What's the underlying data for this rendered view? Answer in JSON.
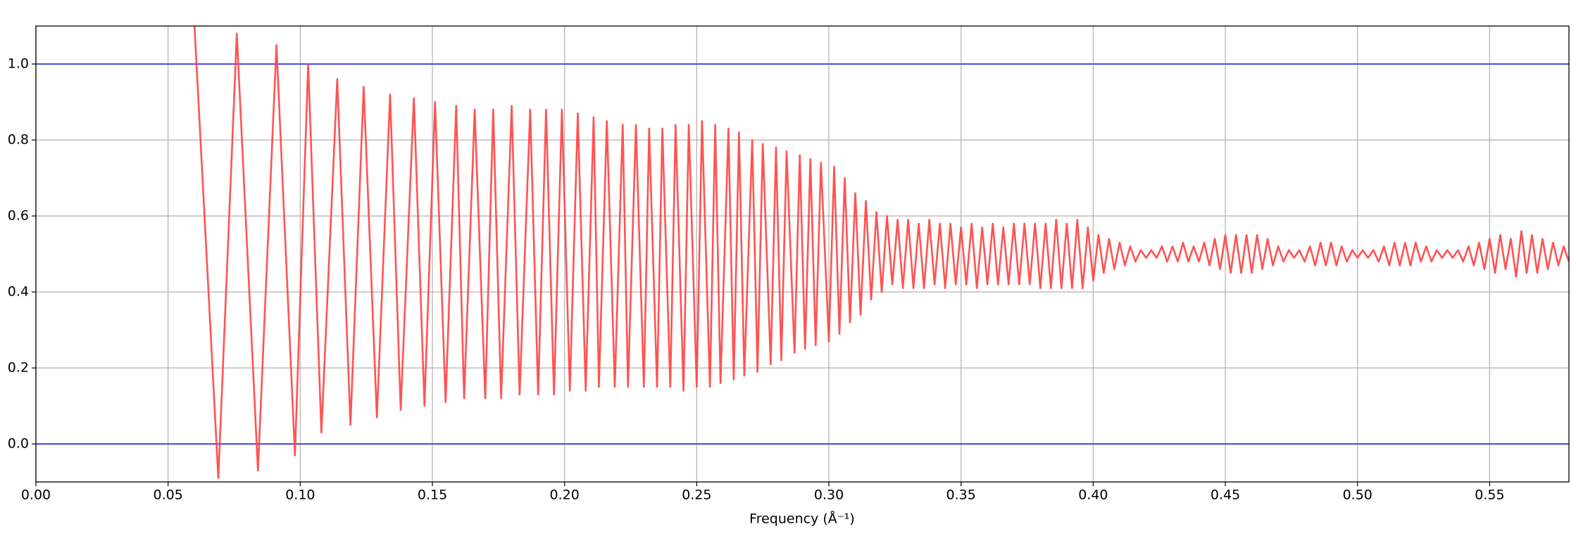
{
  "chart_data": {
    "type": "line",
    "xlabel": "Frequency (Å⁻¹)",
    "xlim": [
      0,
      0.58
    ],
    "ylim": [
      -0.1,
      1.1
    ],
    "xticks": [
      {
        "value": 0,
        "label": "0.00"
      },
      0.05,
      {
        "value": 0.1,
        "label": "0.10"
      },
      0.15,
      {
        "value": 0.2,
        "label": "0.20"
      },
      0.25,
      {
        "value": 0.3,
        "label": "0.30"
      },
      0.35,
      {
        "value": 0.4,
        "label": "0.40"
      },
      0.45,
      {
        "value": 0.5,
        "label": "0.50"
      },
      0.55
    ],
    "yticks": [
      {
        "value": 0,
        "label": "0.0"
      },
      0.2,
      0.4,
      0.6,
      0.8,
      {
        "value": 1,
        "label": "1.0"
      }
    ],
    "grid": true,
    "hlines": [
      0,
      1
    ],
    "hline_color": "#4b4be6",
    "x": [
      0.06,
      0.069,
      0.076,
      0.084,
      0.091,
      0.098,
      0.103,
      0.108,
      0.114,
      0.119,
      0.124,
      0.129,
      0.134,
      0.138,
      0.143,
      0.147,
      0.151,
      0.155,
      0.159,
      0.162,
      0.166,
      0.17,
      0.173,
      0.176,
      0.18,
      0.183,
      0.187,
      0.19,
      0.193,
      0.196,
      0.199,
      0.202,
      0.205,
      0.208,
      0.211,
      0.213,
      0.216,
      0.219,
      0.222,
      0.224,
      0.227,
      0.23,
      0.232,
      0.235,
      0.237,
      0.24,
      0.242,
      0.245,
      0.247,
      0.25,
      0.252,
      0.255,
      0.257,
      0.259,
      0.262,
      0.264,
      0.266,
      0.268,
      0.271,
      0.273,
      0.275,
      0.278,
      0.28,
      0.282,
      0.284,
      0.287,
      0.289,
      0.291,
      0.293,
      0.295,
      0.297,
      0.3,
      0.302,
      0.304,
      0.306,
      0.308,
      0.31,
      0.312,
      0.314,
      0.316,
      0.318,
      0.32,
      0.322,
      0.324,
      0.326,
      0.328,
      0.33,
      0.332,
      0.334,
      0.336,
      0.338,
      0.34,
      0.342,
      0.344,
      0.346,
      0.348,
      0.35,
      0.352,
      0.354,
      0.356,
      0.358,
      0.36,
      0.362,
      0.364,
      0.366,
      0.368,
      0.37,
      0.372,
      0.374,
      0.376,
      0.378,
      0.38,
      0.382,
      0.384,
      0.386,
      0.388,
      0.39,
      0.392,
      0.394,
      0.396,
      0.398,
      0.4,
      0.402,
      0.404,
      0.406,
      0.408,
      0.41,
      0.412,
      0.414,
      0.416,
      0.418,
      0.42,
      0.422,
      0.424,
      0.426,
      0.428,
      0.43,
      0.432,
      0.434,
      0.436,
      0.438,
      0.44,
      0.442,
      0.444,
      0.446,
      0.448,
      0.45,
      0.452,
      0.454,
      0.456,
      0.458,
      0.46,
      0.462,
      0.464,
      0.466,
      0.468,
      0.47,
      0.472,
      0.474,
      0.476,
      0.478,
      0.48,
      0.482,
      0.484,
      0.486,
      0.488,
      0.49,
      0.492,
      0.494,
      0.496,
      0.498,
      0.5,
      0.502,
      0.504,
      0.506,
      0.508,
      0.51,
      0.512,
      0.514,
      0.516,
      0.518,
      0.52,
      0.522,
      0.524,
      0.526,
      0.528,
      0.53,
      0.532,
      0.534,
      0.536,
      0.538,
      0.54,
      0.542,
      0.544,
      0.546,
      0.548,
      0.55,
      0.552,
      0.554,
      0.556,
      0.558,
      0.56,
      0.562,
      0.564,
      0.566,
      0.568,
      0.57,
      0.572,
      0.574,
      0.576,
      0.578,
      0.58
    ],
    "series": [
      {
        "color": "#ff4040",
        "values": [
          1.1,
          -0.09,
          1.08,
          -0.07,
          1.05,
          -0.03,
          1.0,
          0.03,
          0.96,
          0.05,
          0.94,
          0.07,
          0.92,
          0.09,
          0.91,
          0.1,
          0.9,
          0.11,
          0.89,
          0.12,
          0.88,
          0.12,
          0.88,
          0.12,
          0.89,
          0.13,
          0.88,
          0.13,
          0.88,
          0.13,
          0.88,
          0.14,
          0.87,
          0.14,
          0.86,
          0.15,
          0.85,
          0.15,
          0.84,
          0.15,
          0.84,
          0.15,
          0.83,
          0.15,
          0.83,
          0.15,
          0.84,
          0.14,
          0.84,
          0.15,
          0.85,
          0.15,
          0.84,
          0.16,
          0.83,
          0.17,
          0.82,
          0.18,
          0.8,
          0.19,
          0.79,
          0.21,
          0.78,
          0.22,
          0.77,
          0.24,
          0.76,
          0.25,
          0.75,
          0.26,
          0.74,
          0.27,
          0.73,
          0.29,
          0.7,
          0.32,
          0.66,
          0.34,
          0.64,
          0.38,
          0.61,
          0.4,
          0.6,
          0.42,
          0.59,
          0.41,
          0.59,
          0.41,
          0.58,
          0.41,
          0.59,
          0.42,
          0.58,
          0.41,
          0.58,
          0.42,
          0.57,
          0.42,
          0.58,
          0.41,
          0.57,
          0.42,
          0.58,
          0.42,
          0.57,
          0.42,
          0.58,
          0.42,
          0.58,
          0.42,
          0.58,
          0.41,
          0.58,
          0.41,
          0.59,
          0.41,
          0.58,
          0.41,
          0.59,
          0.41,
          0.57,
          0.43,
          0.55,
          0.45,
          0.54,
          0.46,
          0.53,
          0.47,
          0.52,
          0.48,
          0.51,
          0.49,
          0.51,
          0.49,
          0.52,
          0.48,
          0.52,
          0.48,
          0.53,
          0.48,
          0.52,
          0.48,
          0.53,
          0.47,
          0.54,
          0.46,
          0.55,
          0.45,
          0.55,
          0.45,
          0.55,
          0.45,
          0.55,
          0.46,
          0.54,
          0.47,
          0.52,
          0.48,
          0.51,
          0.49,
          0.51,
          0.48,
          0.52,
          0.47,
          0.53,
          0.47,
          0.53,
          0.47,
          0.52,
          0.48,
          0.51,
          0.49,
          0.51,
          0.49,
          0.51,
          0.48,
          0.52,
          0.47,
          0.53,
          0.47,
          0.53,
          0.47,
          0.53,
          0.48,
          0.52,
          0.48,
          0.51,
          0.49,
          0.51,
          0.49,
          0.51,
          0.48,
          0.52,
          0.47,
          0.53,
          0.46,
          0.54,
          0.45,
          0.55,
          0.46,
          0.54,
          0.44,
          0.56,
          0.45,
          0.55,
          0.45,
          0.54,
          0.46,
          0.53,
          0.47,
          0.52,
          0.48
        ]
      }
    ]
  }
}
